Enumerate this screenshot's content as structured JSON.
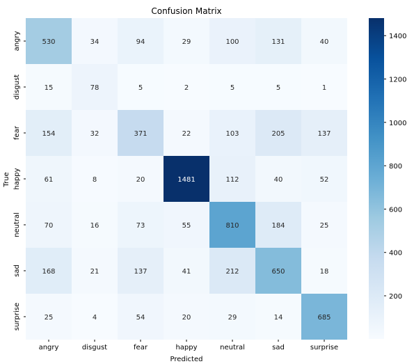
{
  "chart_data": {
    "type": "heatmap",
    "title": "Confusion Matrix",
    "xlabel": "Predicted",
    "ylabel": "True",
    "x_categories": [
      "angry",
      "disgust",
      "fear",
      "happy",
      "neutral",
      "sad",
      "surprise"
    ],
    "y_categories": [
      "angry",
      "disgust",
      "fear",
      "happy",
      "neutral",
      "sad",
      "surprise"
    ],
    "values": [
      [
        530,
        34,
        94,
        29,
        100,
        131,
        40
      ],
      [
        15,
        78,
        5,
        2,
        5,
        5,
        1
      ],
      [
        154,
        32,
        371,
        22,
        103,
        205,
        137
      ],
      [
        61,
        8,
        20,
        1481,
        112,
        40,
        52
      ],
      [
        70,
        16,
        73,
        55,
        810,
        184,
        25
      ],
      [
        168,
        21,
        137,
        41,
        212,
        650,
        18
      ],
      [
        25,
        4,
        54,
        20,
        29,
        14,
        685
      ]
    ],
    "colormap": "Blues",
    "colorbar": {
      "min": 1,
      "max": 1481,
      "ticks": [
        200,
        400,
        600,
        800,
        1000,
        1200,
        1400
      ]
    },
    "grid": false
  }
}
